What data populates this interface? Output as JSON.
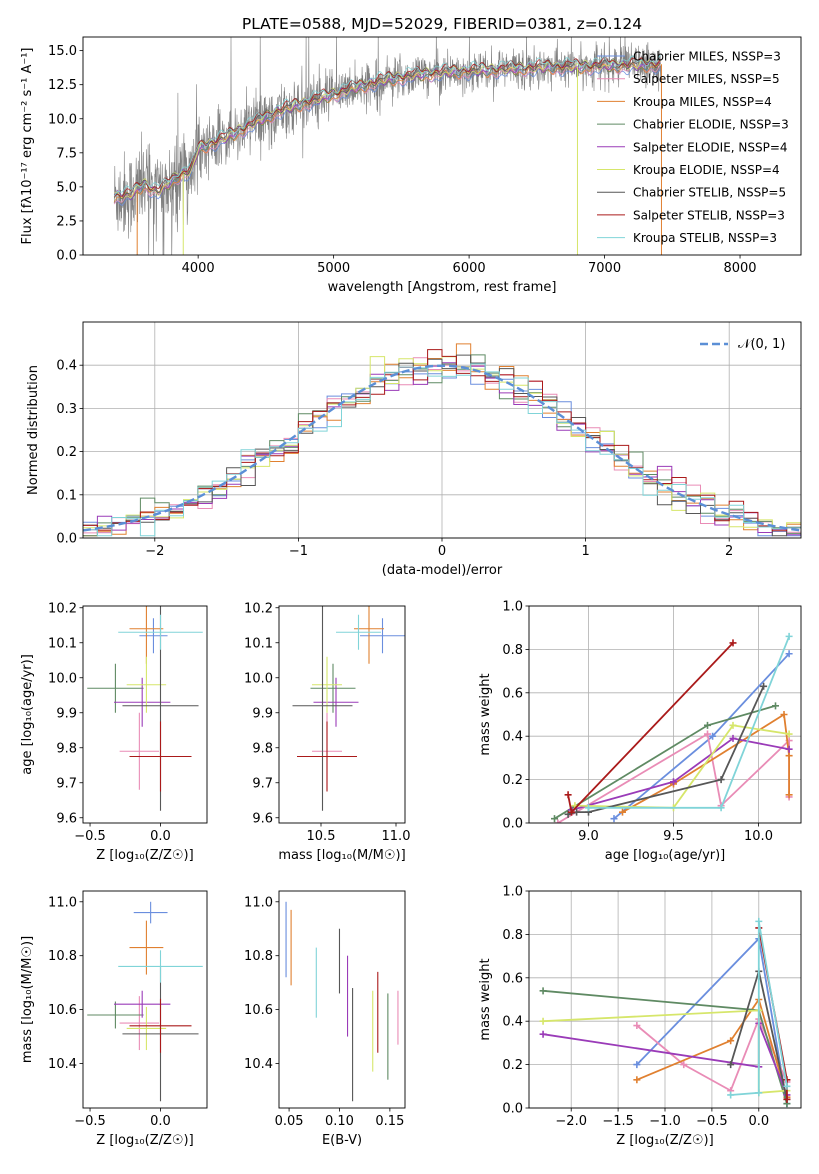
{
  "colors": {
    "chabrier_miles": "#6a8ede",
    "salpeter_miles": "#e98cb6",
    "kroupa_miles": "#e08030",
    "chabrier_elodie": "#5f8a63",
    "salpeter_elodie": "#9a3bb8",
    "kroupa_elodie": "#d6e66a",
    "chabrier_stelib": "#575757",
    "salpeter_stelib": "#aa1a1a",
    "kroupa_stelib": "#80d4d8",
    "data": "#808080",
    "normal": "#5b8fd6"
  },
  "chart_data": [
    {
      "id": "spectrum",
      "type": "line",
      "title": "PLATE=0588, MJD=52029, FIBERID=0381, z=0.124",
      "xlabel": "wavelength [Angstrom, rest frame]",
      "ylabel": "Flux [fλ10⁻¹⁷ erg cm⁻² s⁻¹ A⁻¹]",
      "xlim": [
        3150,
        8450
      ],
      "ylim": [
        0,
        16
      ],
      "xticks": [
        "4000",
        "5000",
        "6000",
        "7000",
        "8000"
      ],
      "yticks": [
        "0.0",
        "2.5",
        "5.0",
        "7.5",
        "10.0",
        "12.5",
        "15.0"
      ],
      "legend": "top-right",
      "data_continuum": [
        [
          3380,
          4.3
        ],
        [
          3500,
          4.4
        ],
        [
          3600,
          5.2
        ],
        [
          3700,
          4.6
        ],
        [
          3850,
          5.8
        ],
        [
          3950,
          6.2
        ],
        [
          4000,
          7.8
        ],
        [
          4200,
          8.6
        ],
        [
          4400,
          9.6
        ],
        [
          4600,
          10.6
        ],
        [
          4800,
          11.2
        ],
        [
          5000,
          11.8
        ],
        [
          5200,
          12.4
        ],
        [
          5400,
          12.9
        ],
        [
          5600,
          13.2
        ],
        [
          5800,
          13.4
        ],
        [
          6000,
          13.5
        ],
        [
          6200,
          13.6
        ],
        [
          6400,
          13.7
        ],
        [
          6600,
          13.8
        ],
        [
          6800,
          13.8
        ],
        [
          7000,
          13.9
        ],
        [
          7200,
          13.9
        ],
        [
          7420,
          14.0
        ]
      ],
      "series": [
        {
          "name": "Chabrier MILES, NSSP=3",
          "color_key": "chabrier_miles"
        },
        {
          "name": "Salpeter MILES, NSSP=5",
          "color_key": "salpeter_miles"
        },
        {
          "name": "Kroupa MILES, NSSP=4",
          "color_key": "kroupa_miles"
        },
        {
          "name": "Chabrier ELODIE, NSSP=3",
          "color_key": "chabrier_elodie"
        },
        {
          "name": "Salpeter ELODIE, NSSP=4",
          "color_key": "salpeter_elodie"
        },
        {
          "name": "Kroupa ELODIE, NSSP=4",
          "color_key": "kroupa_elodie"
        },
        {
          "name": "Chabrier STELIB, NSSP=5",
          "color_key": "chabrier_stelib"
        },
        {
          "name": "Salpeter STELIB, NSSP=3",
          "color_key": "salpeter_stelib"
        },
        {
          "name": "Kroupa STELIB, NSSP=3",
          "color_key": "kroupa_stelib"
        }
      ]
    },
    {
      "id": "residuals",
      "type": "line",
      "xlabel": "(data-model)/error",
      "ylabel": "Normed distribution",
      "xlim": [
        -2.5,
        2.5
      ],
      "ylim": [
        0,
        0.5
      ],
      "xticks": [
        "−2",
        "−1",
        "0",
        "1",
        "2"
      ],
      "yticks": [
        "0.0",
        "0.1",
        "0.2",
        "0.3",
        "0.4"
      ],
      "bin_width": 0.1,
      "legend": "top-right",
      "legend_label": "𝒩(0, 1)",
      "grid": true
    },
    {
      "id": "age_vs_Z",
      "type": "scatter",
      "xlabel": "Z [log₁₀(Z/Z☉)]",
      "ylabel": "age  [log₁₀(age/yr)]",
      "xlim": [
        -0.55,
        0.33
      ],
      "ylim": [
        9.585,
        10.205
      ],
      "xticks": [
        "−0.5",
        "0.0"
      ],
      "yticks": [
        "9.6",
        "9.7",
        "9.8",
        "9.9",
        "10.0",
        "10.1",
        "10.2"
      ],
      "points": [
        {
          "k": "chabrier_miles",
          "x": -0.05,
          "xe": 0.1,
          "y": 10.12,
          "ye": 0.05
        },
        {
          "k": "salpeter_miles",
          "x": -0.15,
          "xe": 0.14,
          "y": 9.79,
          "ye": 0.11
        },
        {
          "k": "kroupa_miles",
          "x": -0.1,
          "xe": 0.12,
          "y": 10.14,
          "ye": 0.1
        },
        {
          "k": "chabrier_elodie",
          "x": -0.32,
          "xe": 0.2,
          "y": 9.97,
          "ye": 0.07
        },
        {
          "k": "salpeter_elodie",
          "x": -0.13,
          "xe": 0.2,
          "y": 9.93,
          "ye": 0.07
        },
        {
          "k": "kroupa_elodie",
          "x": -0.1,
          "xe": 0.14,
          "y": 9.98,
          "ye": 0.08
        },
        {
          "k": "chabrier_stelib",
          "x": 0.0,
          "xe": 0.27,
          "y": 9.92,
          "ye": 0.3
        },
        {
          "k": "salpeter_stelib",
          "x": 0.0,
          "xe": 0.22,
          "y": 9.775,
          "ye": 0.1
        },
        {
          "k": "kroupa_stelib",
          "x": 0.0,
          "xe": 0.3,
          "y": 10.13,
          "ye": 0.05
        }
      ]
    },
    {
      "id": "age_vs_mass",
      "type": "scatter",
      "xlabel": "mass [log₁₀(M/M☉)]",
      "ylabel": "",
      "xlim": [
        10.22,
        11.06
      ],
      "ylim": [
        9.585,
        10.205
      ],
      "xticks": [
        "10.5",
        "11.0"
      ],
      "yticks": [
        "9.6",
        "9.7",
        "9.8",
        "9.9",
        "10.0",
        "10.1",
        "10.2"
      ],
      "points": [
        {
          "k": "chabrier_miles",
          "x": 10.91,
          "xe": 0.15,
          "y": 10.12,
          "ye": 0.05
        },
        {
          "k": "salpeter_miles",
          "x": 10.54,
          "xe": 0.1,
          "y": 9.79,
          "ye": 0.11
        },
        {
          "k": "kroupa_miles",
          "x": 10.82,
          "xe": 0.1,
          "y": 10.14,
          "ye": 0.1
        },
        {
          "k": "chabrier_elodie",
          "x": 10.58,
          "xe": 0.15,
          "y": 9.97,
          "ye": 0.07
        },
        {
          "k": "salpeter_elodie",
          "x": 10.6,
          "xe": 0.15,
          "y": 9.93,
          "ye": 0.07
        },
        {
          "k": "kroupa_elodie",
          "x": 10.54,
          "xe": 0.1,
          "y": 9.98,
          "ye": 0.08
        },
        {
          "k": "chabrier_stelib",
          "x": 10.51,
          "xe": 0.2,
          "y": 9.92,
          "ye": 0.3
        },
        {
          "k": "salpeter_stelib",
          "x": 10.54,
          "xe": 0.2,
          "y": 9.775,
          "ye": 0.1
        },
        {
          "k": "kroupa_stelib",
          "x": 10.75,
          "xe": 0.15,
          "y": 10.13,
          "ye": 0.05
        }
      ]
    },
    {
      "id": "weight_vs_age",
      "type": "line",
      "xlabel": "age  [log₁₀(age/yr)]",
      "ylabel": "mass weight",
      "xlim": [
        8.65,
        10.25
      ],
      "ylim": [
        0,
        1
      ],
      "xticks": [
        "9.0",
        "9.5",
        "10.0"
      ],
      "yticks": [
        "0.0",
        "0.2",
        "0.4",
        "0.6",
        "0.8",
        "1.0"
      ],
      "grid": true,
      "series": [
        {
          "k": "chabrier_miles",
          "pts": [
            [
              9.15,
              0.02
            ],
            [
              9.73,
              0.4
            ],
            [
              10.18,
              0.78
            ]
          ]
        },
        {
          "k": "salpeter_miles",
          "pts": [
            [
              8.82,
              0.0
            ],
            [
              9.7,
              0.41
            ],
            [
              9.78,
              0.08
            ],
            [
              10.18,
              0.38
            ],
            [
              10.18,
              0.12
            ]
          ]
        },
        {
          "k": "kroupa_miles",
          "pts": [
            [
              9.2,
              0.05
            ],
            [
              9.5,
              0.18
            ],
            [
              10.15,
              0.5
            ],
            [
              10.18,
              0.31
            ],
            [
              10.18,
              0.13
            ]
          ]
        },
        {
          "k": "chabrier_elodie",
          "pts": [
            [
              8.8,
              0.02
            ],
            [
              9.7,
              0.45
            ],
            [
              10.1,
              0.54
            ]
          ]
        },
        {
          "k": "salpeter_elodie",
          "pts": [
            [
              8.9,
              0.06
            ],
            [
              9.5,
              0.19
            ],
            [
              9.85,
              0.39
            ],
            [
              10.18,
              0.34
            ]
          ]
        },
        {
          "k": "kroupa_elodie",
          "pts": [
            [
              8.92,
              0.08
            ],
            [
              9.5,
              0.07
            ],
            [
              9.85,
              0.45
            ],
            [
              10.18,
              0.41
            ]
          ]
        },
        {
          "k": "chabrier_stelib",
          "pts": [
            [
              8.88,
              0.04
            ],
            [
              8.93,
              0.05
            ],
            [
              9.0,
              0.05
            ],
            [
              9.78,
              0.2
            ],
            [
              10.03,
              0.63
            ]
          ]
        },
        {
          "k": "salpeter_stelib",
          "pts": [
            [
              8.88,
              0.13
            ],
            [
              8.9,
              0.05
            ],
            [
              9.85,
              0.83
            ]
          ]
        },
        {
          "k": "kroupa_stelib",
          "pts": [
            [
              9.0,
              0.07
            ],
            [
              9.78,
              0.07
            ],
            [
              10.18,
              0.86
            ]
          ]
        }
      ]
    },
    {
      "id": "mass_vs_Z",
      "type": "scatter",
      "xlabel": "Z [log₁₀(Z/Z☉)]",
      "ylabel": "mass [log₁₀(M/M☉)]",
      "xlim": [
        -0.55,
        0.33
      ],
      "ylim": [
        10.235,
        11.04
      ],
      "xticks": [
        "−0.5",
        "0.0"
      ],
      "yticks": [
        "10.4",
        "10.6",
        "10.8",
        "11.0"
      ],
      "points": [
        {
          "k": "chabrier_miles",
          "x": -0.07,
          "xe": 0.12,
          "y": 10.96,
          "ye": 0.04
        },
        {
          "k": "salpeter_miles",
          "x": -0.15,
          "xe": 0.14,
          "y": 10.55,
          "ye": 0.1
        },
        {
          "k": "kroupa_miles",
          "x": -0.1,
          "xe": 0.12,
          "y": 10.83,
          "ye": 0.1
        },
        {
          "k": "chabrier_elodie",
          "x": -0.32,
          "xe": 0.2,
          "y": 10.58,
          "ye": 0.05
        },
        {
          "k": "salpeter_elodie",
          "x": -0.13,
          "xe": 0.2,
          "y": 10.62,
          "ye": 0.05
        },
        {
          "k": "kroupa_elodie",
          "x": -0.1,
          "xe": 0.14,
          "y": 10.53,
          "ye": 0.08
        },
        {
          "k": "chabrier_stelib",
          "x": 0.0,
          "xe": 0.27,
          "y": 10.51,
          "ye": 0.25
        },
        {
          "k": "salpeter_stelib",
          "x": 0.0,
          "xe": 0.22,
          "y": 10.54,
          "ye": 0.1
        },
        {
          "k": "kroupa_stelib",
          "x": 0.0,
          "xe": 0.3,
          "y": 10.76,
          "ye": 0.06
        }
      ]
    },
    {
      "id": "mass_vs_ebv",
      "type": "scatter",
      "xlabel": "E(B-V)",
      "ylabel": "",
      "xlim": [
        0.04,
        0.165
      ],
      "ylim": [
        10.235,
        11.04
      ],
      "xticks": [
        "0.05",
        "0.10",
        "0.15"
      ],
      "yticks": [
        "10.4",
        "10.6",
        "10.8",
        "11.0"
      ],
      "points": [
        {
          "k": "chabrier_miles",
          "x": 0.047,
          "y": 10.86,
          "ye": 0.14
        },
        {
          "k": "kroupa_miles",
          "x": 0.052,
          "y": 10.83,
          "ye": 0.14
        },
        {
          "k": "kroupa_stelib",
          "x": 0.077,
          "y": 10.7,
          "ye": 0.13
        },
        {
          "k": "chabrier_stelib",
          "x": 0.1,
          "y": 10.78,
          "ye": 0.12
        },
        {
          "k": "salpeter_elodie",
          "x": 0.108,
          "y": 10.65,
          "ye": 0.15
        },
        {
          "k": "chabrier_stelib",
          "x": 0.113,
          "y": 10.47,
          "ye": 0.21
        },
        {
          "k": "kroupa_elodie",
          "x": 0.133,
          "y": 10.52,
          "ye": 0.15
        },
        {
          "k": "salpeter_stelib",
          "x": 0.138,
          "y": 10.59,
          "ye": 0.15
        },
        {
          "k": "chabrier_elodie",
          "x": 0.148,
          "y": 10.5,
          "ye": 0.16
        },
        {
          "k": "salpeter_miles",
          "x": 0.158,
          "y": 10.57,
          "ye": 0.1
        }
      ]
    },
    {
      "id": "weight_vs_Z",
      "type": "line",
      "xlabel": "Z [log₁₀(Z/Z☉)]",
      "ylabel": "mass weight",
      "xlim": [
        -2.45,
        0.45
      ],
      "ylim": [
        0,
        1
      ],
      "xticks": [
        "−2.0",
        "−1.5",
        "−1.0",
        "−0.5",
        "0.0"
      ],
      "yticks": [
        "0.0",
        "0.2",
        "0.4",
        "0.6",
        "0.8",
        "1.0"
      ],
      "grid": true,
      "series": [
        {
          "k": "chabrier_miles",
          "pts": [
            [
              -1.3,
              0.2
            ],
            [
              0.0,
              0.78
            ],
            [
              0.3,
              0.02
            ]
          ]
        },
        {
          "k": "salpeter_miles",
          "pts": [
            [
              -1.3,
              0.38
            ],
            [
              -0.8,
              0.2
            ],
            [
              -0.3,
              0.08
            ],
            [
              0.0,
              0.41
            ],
            [
              0.3,
              0.12
            ]
          ]
        },
        {
          "k": "kroupa_miles",
          "pts": [
            [
              -1.3,
              0.13
            ],
            [
              -0.3,
              0.31
            ],
            [
              0.0,
              0.5
            ],
            [
              0.3,
              0.05
            ]
          ]
        },
        {
          "k": "chabrier_elodie",
          "pts": [
            [
              -2.3,
              0.54
            ],
            [
              0.0,
              0.45
            ],
            [
              0.3,
              0.02
            ]
          ]
        },
        {
          "k": "salpeter_elodie",
          "pts": [
            [
              -2.3,
              0.34
            ],
            [
              0.0,
              0.19
            ],
            [
              0.0,
              0.39
            ],
            [
              0.3,
              0.06
            ]
          ]
        },
        {
          "k": "kroupa_elodie",
          "pts": [
            [
              -2.3,
              0.4
            ],
            [
              0.0,
              0.45
            ],
            [
              0.0,
              0.07
            ],
            [
              0.3,
              0.08
            ]
          ]
        },
        {
          "k": "chabrier_stelib",
          "pts": [
            [
              -0.3,
              0.2
            ],
            [
              0.0,
              0.63
            ],
            [
              0.3,
              0.04
            ]
          ]
        },
        {
          "k": "salpeter_stelib",
          "pts": [
            [
              0.0,
              0.83
            ],
            [
              0.3,
              0.13
            ],
            [
              0.3,
              0.04
            ]
          ]
        },
        {
          "k": "kroupa_stelib",
          "pts": [
            [
              -0.3,
              0.06
            ],
            [
              0.0,
              0.07
            ],
            [
              0.0,
              0.86
            ],
            [
              0.3,
              0.1
            ]
          ]
        }
      ]
    }
  ]
}
